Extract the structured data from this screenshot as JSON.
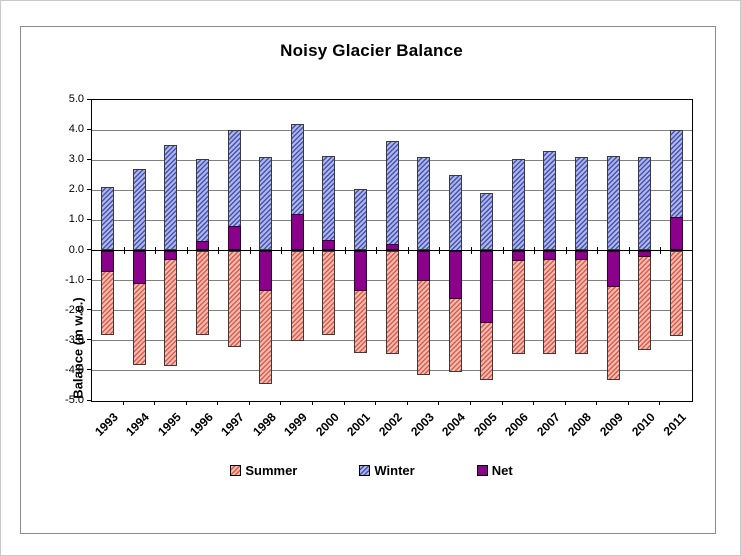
{
  "chart_data": {
    "type": "bar",
    "title": "Noisy Glacier Balance",
    "xlabel": "",
    "ylabel": "Balance (m w.e.)",
    "ylim": [
      -5.0,
      5.0
    ],
    "ytick_step": 1.0,
    "ytick_labels": [
      "5.0",
      "4.0",
      "3.0",
      "2.0",
      "1.0",
      "0.0",
      "-1.0",
      "-2.0",
      "-3.0",
      "-4.0",
      "-5.0"
    ],
    "grid": true,
    "legend_position": "bottom",
    "bar_mode": "overlay-from-zero",
    "categories": [
      "1993",
      "1994",
      "1995",
      "1996",
      "1997",
      "1998",
      "1999",
      "2000",
      "2001",
      "2002",
      "2003",
      "2004",
      "2005",
      "2006",
      "2007",
      "2008",
      "2009",
      "2010",
      "2011"
    ],
    "series": [
      {
        "name": "Summer",
        "pattern": "diagonal-hatch",
        "values": [
          -2.8,
          -3.8,
          -3.85,
          -2.8,
          -3.2,
          -4.45,
          -3.0,
          -2.8,
          -3.4,
          -3.45,
          -4.15,
          -4.05,
          -4.3,
          -3.45,
          -3.45,
          -3.45,
          -4.3,
          -3.3,
          -2.85
        ]
      },
      {
        "name": "Winter",
        "pattern": "diagonal-hatch",
        "values": [
          2.1,
          2.7,
          3.5,
          3.05,
          4.0,
          3.1,
          4.2,
          3.15,
          2.05,
          3.65,
          3.1,
          2.5,
          1.9,
          3.05,
          3.3,
          3.1,
          3.15,
          3.1,
          4.0
        ]
      },
      {
        "name": "Net",
        "pattern": "solid",
        "values": [
          -0.7,
          -1.1,
          -0.3,
          0.3,
          0.8,
          -1.35,
          1.2,
          0.35,
          -1.35,
          0.2,
          -1.0,
          -1.6,
          -2.4,
          -0.35,
          -0.3,
          -0.3,
          -1.2,
          -0.2,
          1.1
        ]
      }
    ],
    "colors": {
      "summer_fill": "#F7BCB0",
      "summer_hatch": "#DD5A4C",
      "winter_fill": "#AEB7E8",
      "winter_hatch": "#4653B5",
      "net_fill": "#8B008B",
      "gridline": "#808080",
      "axis": "#000000",
      "frame_border": "#8C8C8C",
      "background": "#FFFFFF"
    }
  }
}
